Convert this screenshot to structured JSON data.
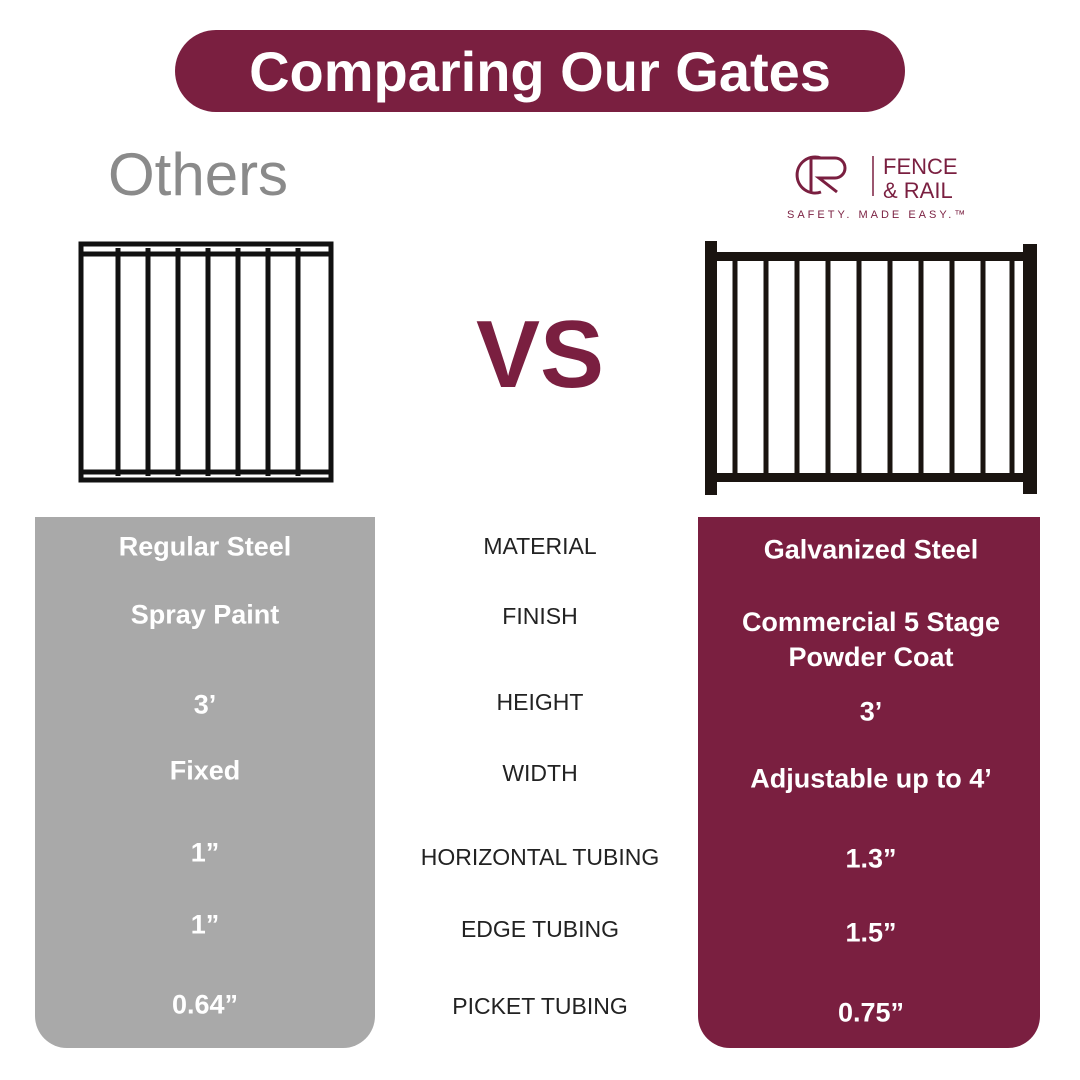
{
  "header": {
    "title": "Comparing Our Gates",
    "others": "Others",
    "vs": "VS"
  },
  "logo": {
    "line1": "FENCE",
    "line2": "& RAIL",
    "tagline": "SAFETY. MADE EASY.™"
  },
  "table": {
    "rows": [
      {
        "label": "MATERIAL",
        "others": "Regular Steel",
        "ours": "Galvanized Steel"
      },
      {
        "label": "FINISH",
        "others": "Spray Paint",
        "ours": "Commercial 5 Stage Powder Coat"
      },
      {
        "label": "HEIGHT",
        "others": "3’",
        "ours": "3’"
      },
      {
        "label": "WIDTH",
        "others": "Fixed",
        "ours": "Adjustable up to 4’"
      },
      {
        "label": "HORIZONTAL TUBING",
        "others": "1”",
        "ours": "1.3”"
      },
      {
        "label": "EDGE TUBING",
        "others": "1”",
        "ours": "1.5”"
      },
      {
        "label": "PICKET TUBING",
        "others": "0.64”",
        "ours": "0.75”"
      }
    ]
  }
}
